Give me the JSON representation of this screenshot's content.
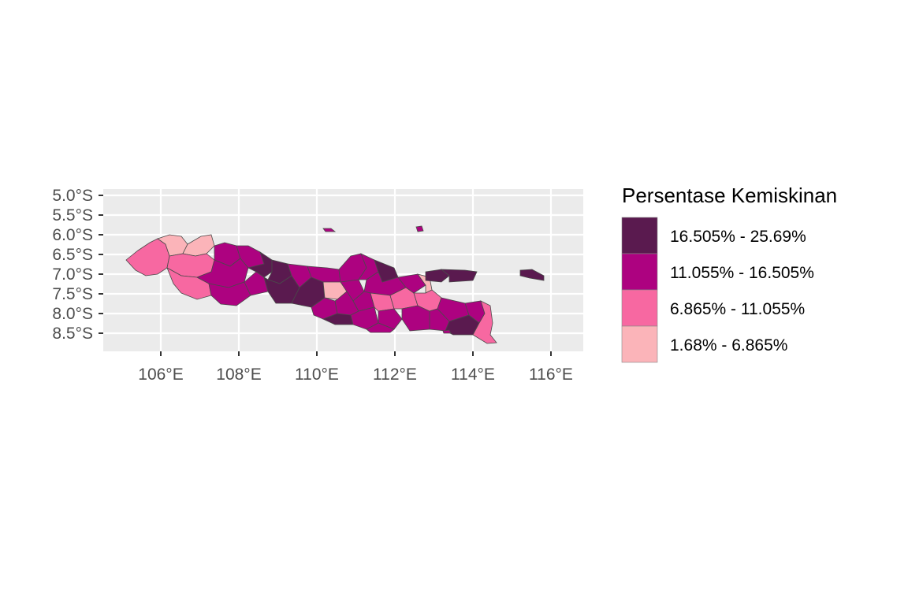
{
  "map": {
    "type": "choropleth",
    "panel_background": "#ebebeb",
    "grid": true,
    "lat_ticks": [
      "5.0°S",
      "5.5°S",
      "6.0°S",
      "6.5°S",
      "7.0°S",
      "7.5°S",
      "8.0°S",
      "8.5°S"
    ],
    "lon_ticks": [
      "106°E",
      "108°E",
      "110°E",
      "112°E",
      "114°E",
      "116°E"
    ],
    "lat_range": [
      -8.95,
      -4.95
    ],
    "lon_range": [
      104.55,
      116.85
    ],
    "legend": {
      "title": "Persentase Kemiskinan",
      "placement": "right",
      "entries": [
        {
          "label": "16.505% - 25.69%",
          "color": "#5a1a4f"
        },
        {
          "label": "11.055% - 16.505%",
          "color": "#ad0280"
        },
        {
          "label": "6.865% - 11.055%",
          "color": "#f768a1"
        },
        {
          "label": "1.68% - 6.865%",
          "color": "#fbb4b9"
        }
      ]
    }
  }
}
